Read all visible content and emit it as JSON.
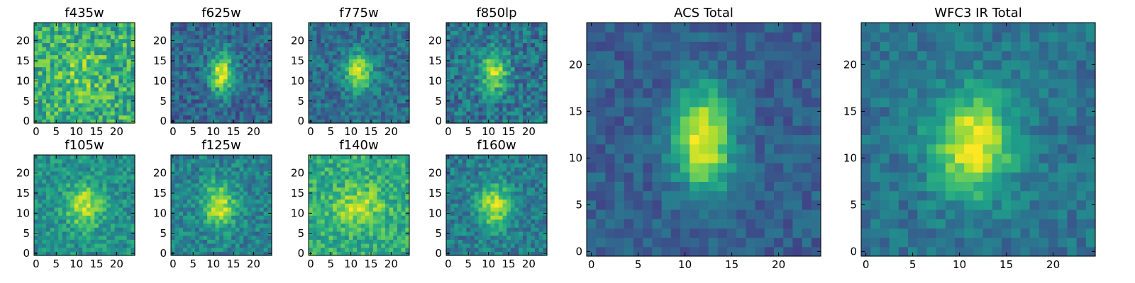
{
  "chart_data": [
    {
      "type": "heatmap",
      "title": "f435w",
      "xticks": [
        "0",
        "5",
        "10",
        "15",
        "20"
      ],
      "yticks": [
        "0",
        "5",
        "10",
        "15",
        "20"
      ],
      "xlim": [
        -0.5,
        24.5
      ],
      "ylim": [
        -0.5,
        24.5
      ],
      "colormap": "viridis",
      "source_center": [
        11.5,
        12
      ],
      "source_sigma": [
        3.5,
        4.5
      ],
      "peak_level": 0.78,
      "background_level": 0.62,
      "noise_level": 0.22
    },
    {
      "type": "heatmap",
      "title": "f625w",
      "xticks": [
        "0",
        "5",
        "10",
        "15",
        "20"
      ],
      "yticks": [
        "0",
        "5",
        "10",
        "15",
        "20"
      ],
      "xlim": [
        -0.5,
        24.5
      ],
      "ylim": [
        -0.5,
        24.5
      ],
      "colormap": "viridis",
      "source_center": [
        12,
        12
      ],
      "source_sigma": [
        2.2,
        3.6
      ],
      "peak_level": 0.92,
      "background_level": 0.33,
      "noise_level": 0.16
    },
    {
      "type": "heatmap",
      "title": "f775w",
      "xticks": [
        "0",
        "5",
        "10",
        "15",
        "20"
      ],
      "yticks": [
        "0",
        "5",
        "10",
        "15",
        "20"
      ],
      "xlim": [
        -0.5,
        24.5
      ],
      "ylim": [
        -0.5,
        24.5
      ],
      "colormap": "viridis",
      "source_center": [
        12,
        12
      ],
      "source_sigma": [
        2.3,
        3.6
      ],
      "peak_level": 0.9,
      "background_level": 0.36,
      "noise_level": 0.15
    },
    {
      "type": "heatmap",
      "title": "f850lp",
      "xticks": [
        "0",
        "5",
        "10",
        "15",
        "20"
      ],
      "yticks": [
        "0",
        "5",
        "10",
        "15",
        "20"
      ],
      "xlim": [
        -0.5,
        24.5
      ],
      "ylim": [
        -0.5,
        24.5
      ],
      "colormap": "viridis",
      "source_center": [
        11.5,
        12
      ],
      "source_sigma": [
        2.3,
        3.6
      ],
      "peak_level": 0.88,
      "background_level": 0.38,
      "noise_level": 0.18
    },
    {
      "type": "heatmap",
      "title": "f105w",
      "xticks": [
        "0",
        "5",
        "10",
        "15",
        "20"
      ],
      "yticks": [
        "0",
        "5",
        "10",
        "15",
        "20"
      ],
      "xlim": [
        -0.5,
        24.5
      ],
      "ylim": [
        -0.5,
        24.5
      ],
      "colormap": "viridis",
      "source_center": [
        12,
        12
      ],
      "source_sigma": [
        3.2,
        3.6
      ],
      "peak_level": 0.93,
      "background_level": 0.5,
      "noise_level": 0.15
    },
    {
      "type": "heatmap",
      "title": "f125w",
      "xticks": [
        "0",
        "5",
        "10",
        "15",
        "20"
      ],
      "yticks": [
        "0",
        "5",
        "10",
        "15",
        "20"
      ],
      "xlim": [
        -0.5,
        24.5
      ],
      "ylim": [
        -0.5,
        24.5
      ],
      "colormap": "viridis",
      "source_center": [
        11.5,
        12
      ],
      "source_sigma": [
        2.8,
        3.8
      ],
      "peak_level": 0.92,
      "background_level": 0.44,
      "noise_level": 0.15
    },
    {
      "type": "heatmap",
      "title": "f140w",
      "xticks": [
        "0",
        "5",
        "10",
        "15",
        "20"
      ],
      "yticks": [
        "0",
        "5",
        "10",
        "15",
        "20"
      ],
      "xlim": [
        -0.5,
        24.5
      ],
      "ylim": [
        -0.5,
        24.5
      ],
      "colormap": "viridis",
      "source_center": [
        12,
        11.5
      ],
      "source_sigma": [
        4,
        3.2
      ],
      "peak_level": 0.9,
      "background_level": 0.62,
      "noise_level": 0.16
    },
    {
      "type": "heatmap",
      "title": "f160w",
      "xticks": [
        "0",
        "5",
        "10",
        "15",
        "20"
      ],
      "yticks": [
        "0",
        "5",
        "10",
        "15",
        "20"
      ],
      "xlim": [
        -0.5,
        24.5
      ],
      "ylim": [
        -0.5,
        24.5
      ],
      "colormap": "viridis",
      "source_center": [
        11.5,
        12
      ],
      "source_sigma": [
        3,
        3.8
      ],
      "peak_level": 0.9,
      "background_level": 0.42,
      "noise_level": 0.15
    },
    {
      "type": "heatmap",
      "title": "ACS Total",
      "xticks": [
        "0",
        "5",
        "10",
        "15",
        "20"
      ],
      "yticks": [
        "0",
        "5",
        "10",
        "15",
        "20"
      ],
      "xlim": [
        -0.5,
        24.5
      ],
      "ylim": [
        -0.5,
        24.5
      ],
      "colormap": "viridis",
      "source_center": [
        12,
        12
      ],
      "source_sigma": [
        2.2,
        3.8
      ],
      "peak_level": 1.0,
      "background_level": 0.3,
      "noise_level": 0.1
    },
    {
      "type": "heatmap",
      "title": "WFC3 IR Total",
      "xticks": [
        "0",
        "5",
        "10",
        "15",
        "20"
      ],
      "yticks": [
        "0",
        "5",
        "10",
        "15",
        "20"
      ],
      "xlim": [
        -0.5,
        24.5
      ],
      "ylim": [
        -0.5,
        24.5
      ],
      "colormap": "viridis",
      "source_center": [
        11.5,
        11.5
      ],
      "source_sigma": [
        3,
        3.8
      ],
      "peak_level": 1.0,
      "background_level": 0.38,
      "noise_level": 0.11
    }
  ]
}
